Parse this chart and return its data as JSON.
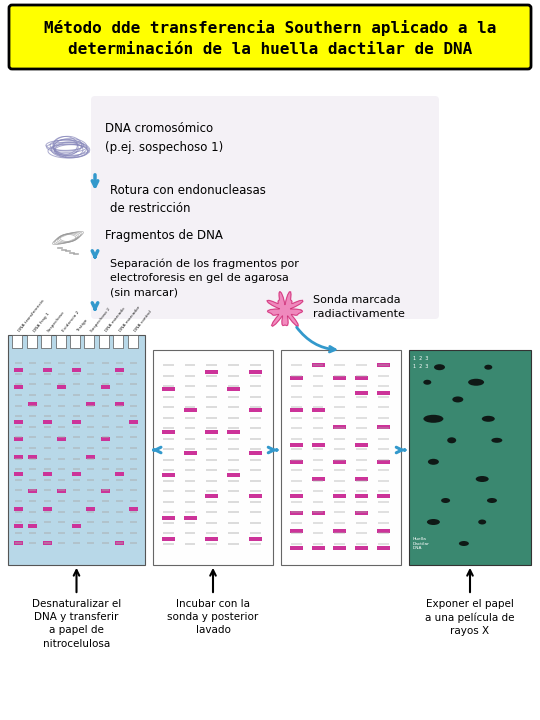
{
  "title_line1": "Método dde transferencia Southern aplicado a la",
  "title_line2": "determinación de la huella dactilar de DNA",
  "title_bg": "#FFFF00",
  "title_fontsize": 11.5,
  "bg_color": "#FFFFFF",
  "step_bg": "#EDE8F0",
  "arrow_color": "#3399CC",
  "text1": "DNA cromosómico\n(p.ej. sospechoso 1)",
  "text2": "Rotura con endonucleasas\nde restricción",
  "text3": "Fragmentos de DNA",
  "text4": "Separación de los fragmentos por\nelectroforesis en gel de agarosa\n(sin marcar)",
  "text5": "Sonda marcada\nradiactivamente",
  "label1": "Desnaturalizar el\nDNA y transferir\na papel de\nnitrocelulosa",
  "label2": "Incubar con la\nsonda y posterior\nlavado",
  "label3": "Exponer el papel\na una película de\nrayos X",
  "gel_bg": "#B8D8E8",
  "band_color_pink": "#CC3399",
  "band_color_gray": "#AAAAAA",
  "xray_bg": "#3a8870",
  "xray_band": "#0a0a0a",
  "dna_blob_color": "#8888BB",
  "frag_blob_color": "#999999"
}
